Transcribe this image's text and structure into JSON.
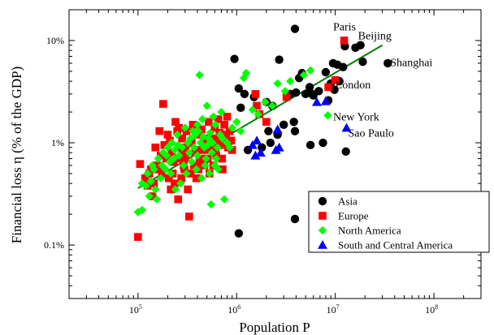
{
  "chart_data": {
    "type": "scatter",
    "xlabel": "Population P",
    "ylabel": "Financial loss η (% of the GDP)",
    "x_scale": "log",
    "y_scale": "log",
    "xlim": [
      20000,
      300000000
    ],
    "ylim": [
      0.03,
      20
    ],
    "x_ticks": [
      {
        "value": 100000,
        "base": "10",
        "exp": "5"
      },
      {
        "value": 1000000,
        "base": "10",
        "exp": "6"
      },
      {
        "value": 10000000,
        "base": "10",
        "exp": "7"
      },
      {
        "value": 100000000,
        "base": "10",
        "exp": "8"
      }
    ],
    "y_ticks": [
      {
        "value": 0.1,
        "label": "0.1%"
      },
      {
        "value": 1,
        "label": "1%"
      },
      {
        "value": 10,
        "label": "10%"
      }
    ],
    "grid": false,
    "legend_position": "bottom-right",
    "series": [
      {
        "name": "Asia",
        "marker": "circle",
        "color": "#000000",
        "points": [
          [
            3900000,
            13
          ],
          [
            12500000,
            8.8
          ],
          [
            18000000,
            9
          ],
          [
            16000000,
            8.5
          ],
          [
            34000000,
            6.0
          ],
          [
            9500000,
            6.0
          ],
          [
            10500000,
            5.8
          ],
          [
            12000000,
            5.5
          ],
          [
            19000000,
            6.2
          ],
          [
            2700000,
            6.5
          ],
          [
            950000,
            6.6
          ],
          [
            8000000,
            4.9
          ],
          [
            4300000,
            4.3
          ],
          [
            9000000,
            3.8
          ],
          [
            11000000,
            4.0
          ],
          [
            5500000,
            3.5
          ],
          [
            6800000,
            3.2
          ],
          [
            5000000,
            3.0
          ],
          [
            6000000,
            2.9
          ],
          [
            1500000,
            2.8
          ],
          [
            1200000,
            3.0
          ],
          [
            1050000,
            3.4
          ],
          [
            2000000,
            2.5
          ],
          [
            3500000,
            3.0
          ],
          [
            8500000,
            2.6
          ],
          [
            3800000,
            1.6
          ],
          [
            2100000,
            1.3
          ],
          [
            3000000,
            1.5
          ],
          [
            2600000,
            1.2
          ],
          [
            2200000,
            1.0
          ],
          [
            3900000,
            1.3
          ],
          [
            7500000,
            1.0
          ],
          [
            5600000,
            0.95
          ],
          [
            1800000,
            0.9
          ],
          [
            1300000,
            0.85
          ],
          [
            12800000,
            0.82
          ],
          [
            3900000,
            0.18
          ],
          [
            1050000,
            0.13
          ],
          [
            4000000,
            3.1
          ],
          [
            5800000,
            3.0
          ],
          [
            1100000,
            2.2
          ],
          [
            4600000,
            4.8
          ],
          [
            2300000,
            2.3
          ],
          [
            9800000,
            3.3
          ]
        ]
      },
      {
        "name": "Europe",
        "marker": "square",
        "color": "#ff0000",
        "points": [
          [
            12300000,
            10
          ],
          [
            10000000,
            4.1
          ],
          [
            8500000,
            3.5
          ],
          [
            100000,
            0.12
          ],
          [
            180000,
            2.4
          ],
          [
            105000,
            0.62
          ],
          [
            118000,
            0.45
          ],
          [
            130000,
            0.5
          ],
          [
            150000,
            0.9
          ],
          [
            160000,
            0.55
          ],
          [
            170000,
            0.75
          ],
          [
            185000,
            0.95
          ],
          [
            200000,
            1.2
          ],
          [
            210000,
            1.05
          ],
          [
            220000,
            0.8
          ],
          [
            230000,
            0.65
          ],
          [
            240000,
            1.6
          ],
          [
            250000,
            1.3
          ],
          [
            260000,
            1.4
          ],
          [
            270000,
            0.9
          ],
          [
            280000,
            1.1
          ],
          [
            290000,
            0.6
          ],
          [
            300000,
            0.7
          ],
          [
            310000,
            1.3
          ],
          [
            320000,
            0.35
          ],
          [
            330000,
            0.19
          ],
          [
            350000,
            1.0
          ],
          [
            360000,
            1.5
          ],
          [
            380000,
            0.8
          ],
          [
            400000,
            1.2
          ],
          [
            420000,
            0.65
          ],
          [
            440000,
            1.35
          ],
          [
            460000,
            0.9
          ],
          [
            480000,
            1.1
          ],
          [
            500000,
            0.85
          ],
          [
            520000,
            1.6
          ],
          [
            550000,
            1.0
          ],
          [
            580000,
            0.6
          ],
          [
            600000,
            1.4
          ],
          [
            620000,
            0.75
          ],
          [
            650000,
            1.7
          ],
          [
            680000,
            0.95
          ],
          [
            700000,
            1.2
          ],
          [
            720000,
            0.55
          ],
          [
            750000,
            1.5
          ],
          [
            800000,
            1.8
          ],
          [
            820000,
            0.9
          ],
          [
            850000,
            1.3
          ],
          [
            1600000,
            2.3
          ],
          [
            2000000,
            1.6
          ],
          [
            1550000,
            3.0
          ],
          [
            3200000,
            2.8
          ],
          [
            1700000,
            1.9
          ],
          [
            140000,
            0.3
          ],
          [
            145000,
            0.4
          ],
          [
            155000,
            0.6
          ],
          [
            165000,
            1.3
          ],
          [
            175000,
            0.5
          ],
          [
            195000,
            0.7
          ],
          [
            205000,
            0.45
          ],
          [
            215000,
            0.35
          ],
          [
            225000,
            0.5
          ],
          [
            235000,
            0.4
          ],
          [
            255000,
            0.28
          ],
          [
            265000,
            0.7
          ],
          [
            275000,
            0.45
          ],
          [
            285000,
            0.8
          ],
          [
            295000,
            0.55
          ],
          [
            305000,
            0.9
          ],
          [
            340000,
            0.5
          ],
          [
            370000,
            0.6
          ],
          [
            390000,
            0.45
          ],
          [
            410000,
            0.55
          ],
          [
            430000,
            0.85
          ],
          [
            450000,
            0.7
          ],
          [
            470000,
            0.6
          ],
          [
            490000,
            1.0
          ],
          [
            510000,
            0.7
          ],
          [
            530000,
            0.5
          ],
          [
            560000,
            0.9
          ],
          [
            590000,
            1.1
          ],
          [
            610000,
            0.8
          ],
          [
            640000,
            1.0
          ],
          [
            670000,
            1.25
          ],
          [
            710000,
            0.7
          ],
          [
            740000,
            1.0
          ],
          [
            780000,
            1.2
          ],
          [
            880000,
            1.05
          ],
          [
            900000,
            0.85
          ],
          [
            125000,
            0.38
          ],
          [
            135000,
            0.55
          ]
        ]
      },
      {
        "name": "North America",
        "marker": "diamond",
        "color": "#00ff00",
        "points": [
          [
            420000,
            4.6
          ],
          [
            1180000,
            4.3
          ],
          [
            1250000,
            4.8
          ],
          [
            4800000,
            4.6
          ],
          [
            5600000,
            5.1
          ],
          [
            2600000,
            3.8
          ],
          [
            1950000,
            2.5
          ],
          [
            1450000,
            2.1
          ],
          [
            2300000,
            2.3
          ],
          [
            1650000,
            1.9
          ],
          [
            8400000,
            1.85
          ],
          [
            700000,
            2.0
          ],
          [
            580000,
            1.8
          ],
          [
            450000,
            1.7
          ],
          [
            500000,
            2.3
          ],
          [
            400000,
            1.5
          ],
          [
            360000,
            1.3
          ],
          [
            300000,
            1.4
          ],
          [
            250000,
            1.2
          ],
          [
            220000,
            1.0
          ],
          [
            200000,
            0.9
          ],
          [
            180000,
            0.8
          ],
          [
            160000,
            0.7
          ],
          [
            140000,
            0.6
          ],
          [
            125000,
            0.5
          ],
          [
            110000,
            0.4
          ],
          [
            100000,
            0.21
          ],
          [
            110000,
            0.22
          ],
          [
            130000,
            0.3
          ],
          [
            150000,
            0.35
          ],
          [
            170000,
            0.45
          ],
          [
            190000,
            0.55
          ],
          [
            210000,
            0.65
          ],
          [
            230000,
            0.7
          ],
          [
            260000,
            0.75
          ],
          [
            280000,
            0.9
          ],
          [
            320000,
            1.0
          ],
          [
            340000,
            1.1
          ],
          [
            380000,
            1.2
          ],
          [
            430000,
            1.0
          ],
          [
            470000,
            0.9
          ],
          [
            520000,
            1.1
          ],
          [
            560000,
            0.8
          ],
          [
            600000,
            0.6
          ],
          [
            650000,
            0.55
          ],
          [
            750000,
            0.28
          ],
          [
            550000,
            0.25
          ],
          [
            900000,
            1.4
          ],
          [
            1000000,
            1.6
          ],
          [
            1100000,
            1.3
          ],
          [
            310000,
            0.5
          ],
          [
            270000,
            0.4
          ],
          [
            240000,
            0.35
          ],
          [
            350000,
            0.65
          ],
          [
            400000,
            0.75
          ],
          [
            480000,
            0.6
          ],
          [
            530000,
            0.5
          ],
          [
            620000,
            0.7
          ],
          [
            680000,
            1.2
          ],
          [
            800000,
            1.0
          ],
          [
            850000,
            0.9
          ],
          [
            120000,
            0.38
          ],
          [
            135000,
            0.42
          ],
          [
            145000,
            0.55
          ],
          [
            155000,
            0.28
          ],
          [
            175000,
            0.6
          ],
          [
            195000,
            0.75
          ],
          [
            215000,
            0.5
          ],
          [
            235000,
            0.85
          ],
          [
            255000,
            0.95
          ],
          [
            290000,
            0.6
          ],
          [
            330000,
            0.8
          ],
          [
            370000,
            0.9
          ],
          [
            390000,
            0.55
          ],
          [
            410000,
            1.3
          ],
          [
            440000,
            0.45
          ],
          [
            460000,
            1.15
          ],
          [
            490000,
            0.7
          ],
          [
            510000,
            0.95
          ],
          [
            540000,
            1.25
          ],
          [
            570000,
            1.0
          ],
          [
            610000,
            1.5
          ],
          [
            640000,
            0.9
          ],
          [
            720000,
            1.1
          ],
          [
            3100000,
            3.2
          ],
          [
            3500000,
            4.0
          ]
        ]
      },
      {
        "name": "South and Central America",
        "marker": "triangle",
        "color": "#0000ff",
        "points": [
          [
            13000000,
            1.4
          ],
          [
            6500000,
            2.5
          ],
          [
            8000000,
            2.55
          ],
          [
            1600000,
            1.05
          ],
          [
            1450000,
            0.95
          ],
          [
            2700000,
            0.9
          ],
          [
            2500000,
            0.85
          ],
          [
            1550000,
            0.75
          ],
          [
            1750000,
            0.8
          ],
          [
            2600000,
            1.35
          ]
        ]
      }
    ],
    "fit_line": {
      "color": "#008000",
      "from": [
        100000,
        0.36
      ],
      "to": [
        30000000,
        9.0
      ]
    },
    "annotations": [
      {
        "text": "Paris",
        "x": 9500000,
        "y": 12.5
      },
      {
        "text": "Beijing",
        "x": 17000000,
        "y": 10.3
      },
      {
        "text": "Shanghai",
        "x": 36000000,
        "y": 5.6
      },
      {
        "text": "London",
        "x": 10000000,
        "y": 3.4
      },
      {
        "text": "New York",
        "x": 9500000,
        "y": 1.65
      },
      {
        "text": "Sao Paulo",
        "x": 13500000,
        "y": 1.15
      }
    ]
  }
}
